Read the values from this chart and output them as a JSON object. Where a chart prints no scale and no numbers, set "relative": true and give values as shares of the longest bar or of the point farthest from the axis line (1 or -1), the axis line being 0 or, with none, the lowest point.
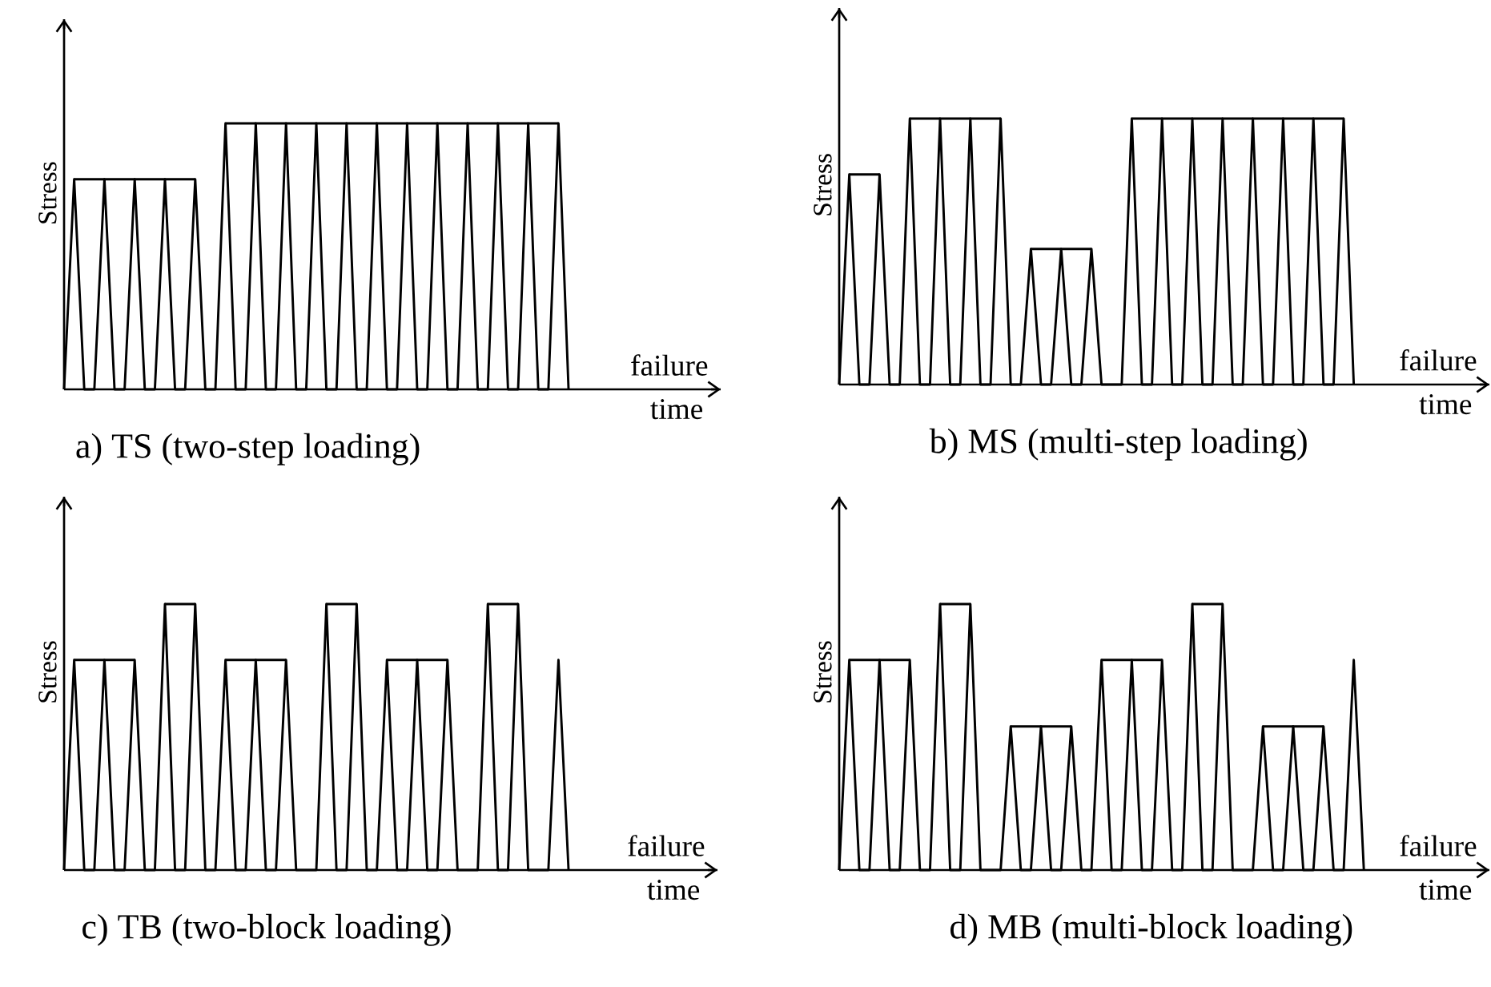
{
  "chart_data": [
    {
      "type": "line",
      "relative": true,
      "title": "a) TS (two-step loading)",
      "xlabel": "time",
      "ylabel": "Stress",
      "annotations": [
        "failure"
      ],
      "marker": "none",
      "line_style": "solid",
      "categories": [
        null,
        null,
        null,
        null,
        null,
        null,
        null,
        null,
        null,
        null,
        null,
        null,
        null,
        null,
        null,
        null,
        null,
        null,
        null,
        null,
        null,
        null,
        null,
        null,
        null,
        null,
        null,
        null,
        null,
        null,
        null,
        null,
        null,
        null,
        null,
        null,
        null,
        null,
        null,
        null,
        null,
        null,
        null,
        null,
        null,
        null,
        null,
        null,
        null,
        null,
        null
      ],
      "series": [
        {
          "color": "#000000",
          "values": [
            0,
            0.79,
            0,
            0,
            0.79,
            0,
            0,
            0.79,
            0,
            0,
            0.79,
            0,
            0,
            0.79,
            0,
            0,
            1,
            0,
            0,
            1,
            0,
            0,
            1,
            0,
            0,
            1,
            0,
            0,
            1,
            0,
            0,
            1,
            0,
            0,
            1,
            0,
            0,
            1,
            0,
            0,
            1,
            0,
            0,
            1,
            0,
            0,
            1,
            0,
            0,
            1,
            0
          ]
        },
        {
          "color": "#000000",
          "values": [
            null,
            0.79,
            0.79,
            0.79,
            0.79,
            0.79,
            0.79,
            0.79,
            0.79,
            0.79,
            0.79,
            0.79,
            0.79,
            0.79,
            null,
            null,
            null,
            null,
            null,
            null,
            null,
            null,
            null,
            null,
            null,
            null,
            null,
            null,
            null,
            null,
            null,
            null,
            null,
            null,
            null,
            null,
            null,
            null,
            null,
            null,
            null,
            null,
            null,
            null,
            null,
            null,
            null,
            null,
            null,
            null,
            null
          ]
        },
        {
          "color": "#000000",
          "values": [
            null,
            null,
            null,
            null,
            null,
            null,
            null,
            null,
            null,
            null,
            null,
            null,
            null,
            null,
            null,
            null,
            1,
            1,
            1,
            1,
            1,
            1,
            1,
            1,
            1,
            1,
            1,
            1,
            1,
            1,
            1,
            1,
            1,
            1,
            1,
            1,
            1,
            1,
            1,
            1,
            1,
            1,
            1,
            1,
            1,
            1,
            1,
            1,
            1,
            1,
            null
          ]
        }
      ]
    },
    {
      "type": "line",
      "relative": true,
      "title": "b) MS (multi-step loading)",
      "xlabel": "time",
      "ylabel": "Stress",
      "annotations": [
        "failure"
      ],
      "marker": "none",
      "line_style": "solid",
      "categories": [
        null,
        null,
        null,
        null,
        null,
        null,
        null,
        null,
        null,
        null,
        null,
        null,
        null,
        null,
        null,
        null,
        null,
        null,
        null,
        null,
        null,
        null,
        null,
        null,
        null,
        null,
        null,
        null,
        null,
        null,
        null,
        null,
        null,
        null,
        null,
        null,
        null,
        null,
        null,
        null,
        null,
        null,
        null,
        null,
        null,
        null,
        null,
        null,
        null,
        null,
        null,
        null
      ],
      "series": [
        {
          "color": "#000000",
          "values": [
            0,
            0.79,
            0,
            0,
            0.79,
            0,
            0,
            1,
            0,
            0,
            1,
            0,
            0,
            1,
            0,
            0,
            1,
            0,
            0,
            0.51,
            0,
            0,
            0.51,
            0,
            0,
            0.51,
            0,
            0,
            0,
            1,
            0,
            0,
            1,
            0,
            0,
            1,
            0,
            0,
            1,
            0,
            0,
            1,
            0,
            0,
            1,
            0,
            0,
            1,
            0,
            0,
            1,
            0
          ]
        },
        {
          "color": "#000000",
          "values": [
            null,
            0.79,
            0.79,
            0.79,
            0.79,
            null,
            null,
            1,
            1,
            1,
            1,
            1,
            1,
            1,
            1,
            1,
            1,
            null,
            null,
            0.51,
            0.51,
            0.51,
            0.51,
            0.51,
            0.51,
            0.51,
            null,
            null,
            null,
            1,
            1,
            1,
            1,
            1,
            1,
            1,
            1,
            1,
            1,
            1,
            1,
            1,
            1,
            1,
            1,
            1,
            1,
            1,
            1,
            1,
            1,
            null
          ]
        }
      ]
    },
    {
      "type": "line",
      "relative": true,
      "title": "c) TB (two-block loading)",
      "xlabel": "time",
      "ylabel": "Stress",
      "annotations": [
        "failure"
      ],
      "marker": "none",
      "line_style": "solid",
      "categories": [
        null,
        null,
        null,
        null,
        null,
        null,
        null,
        null,
        null,
        null,
        null,
        null,
        null,
        null,
        null,
        null,
        null,
        null,
        null,
        null,
        null,
        null,
        null,
        null,
        null,
        null,
        null,
        null,
        null,
        null,
        null,
        null,
        null,
        null,
        null,
        null,
        null,
        null,
        null,
        null,
        null,
        null,
        null,
        null,
        null,
        null,
        null,
        null,
        null,
        null,
        null
      ],
      "series": [
        {
          "color": "#000000",
          "values": [
            0,
            0.79,
            0,
            0,
            0.79,
            0,
            0,
            0.79,
            0,
            0,
            1,
            0,
            0,
            1,
            0,
            0,
            0.79,
            0,
            0,
            0.79,
            0,
            0,
            0.79,
            0,
            0,
            0,
            1,
            0,
            0,
            1,
            0,
            0,
            0.79,
            0,
            0,
            0.79,
            0,
            0,
            0.79,
            0,
            0,
            0,
            1,
            0,
            0,
            1,
            0,
            0,
            0,
            0.79,
            0
          ]
        },
        {
          "color": "#000000",
          "values": [
            null,
            0.79,
            0.79,
            0.79,
            0.79,
            0.79,
            0.79,
            0.79,
            null,
            null,
            1,
            1,
            1,
            1,
            null,
            null,
            0.79,
            0.79,
            0.79,
            0.79,
            0.79,
            0.79,
            0.79,
            null,
            null,
            null,
            1,
            1,
            1,
            1,
            null,
            null,
            0.79,
            0.79,
            0.79,
            0.79,
            0.79,
            0.79,
            0.79,
            null,
            null,
            null,
            1,
            1,
            1,
            1,
            null,
            null,
            null,
            null,
            null
          ]
        }
      ]
    },
    {
      "type": "line",
      "relative": true,
      "title": "d) MB (multi-block loading)",
      "xlabel": "time",
      "ylabel": "Stress",
      "annotations": [
        "failure"
      ],
      "marker": "none",
      "line_style": "solid",
      "categories": [
        null,
        null,
        null,
        null,
        null,
        null,
        null,
        null,
        null,
        null,
        null,
        null,
        null,
        null,
        null,
        null,
        null,
        null,
        null,
        null,
        null,
        null,
        null,
        null,
        null,
        null,
        null,
        null,
        null,
        null,
        null,
        null,
        null,
        null,
        null,
        null,
        null,
        null,
        null,
        null,
        null,
        null,
        null,
        null,
        null,
        null,
        null,
        null,
        null,
        null,
        null,
        null,
        null
      ],
      "series": [
        {
          "color": "#000000",
          "values": [
            0,
            0.79,
            0,
            0,
            0.79,
            0,
            0,
            0.79,
            0,
            0,
            1,
            0,
            0,
            1,
            0,
            0,
            0,
            0.54,
            0,
            0,
            0.54,
            0,
            0,
            0.54,
            0,
            0,
            0.79,
            0,
            0,
            0.79,
            0,
            0,
            0.79,
            0,
            0,
            1,
            0,
            0,
            1,
            0,
            0,
            0,
            0.54,
            0,
            0,
            0.54,
            0,
            0,
            0.54,
            0,
            0,
            0.79,
            0
          ]
        },
        {
          "color": "#000000",
          "values": [
            null,
            0.79,
            0.79,
            0.79,
            0.79,
            0.79,
            0.79,
            0.79,
            null,
            null,
            1,
            1,
            1,
            1,
            null,
            null,
            null,
            0.54,
            0.54,
            0.54,
            0.54,
            0.54,
            0.54,
            0.54,
            null,
            null,
            0.79,
            0.79,
            0.79,
            0.79,
            0.79,
            0.79,
            0.79,
            null,
            null,
            1,
            1,
            1,
            1,
            null,
            null,
            null,
            0.54,
            0.54,
            0.54,
            0.54,
            0.54,
            0.54,
            0.54,
            null,
            null,
            null,
            null
          ]
        }
      ]
    }
  ]
}
